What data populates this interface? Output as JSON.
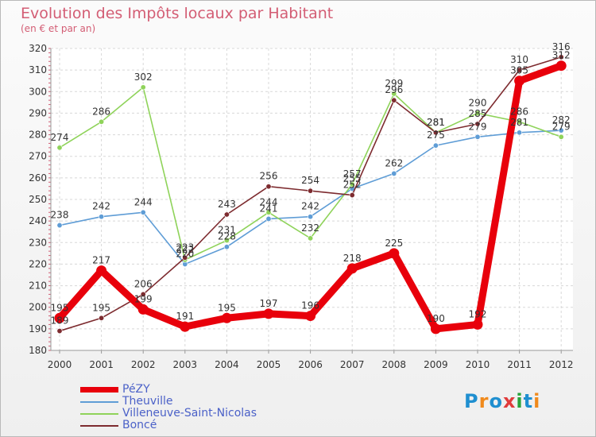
{
  "header": {
    "title": "Evolution des Impôts locaux par Habitant",
    "subtitle": "(en € et par an)"
  },
  "logo": {
    "text": "Proxiti",
    "letters": [
      "P",
      "r",
      "o",
      "x",
      "i",
      "t",
      "i"
    ],
    "colors": [
      "#1f8fd0",
      "#f08a1c",
      "#1f8fd0",
      "#e03b3b",
      "#29a33a",
      "#1f8fd0",
      "#f08a1c"
    ]
  },
  "chart_data": {
    "type": "line",
    "title": "Evolution des Impôts locaux par Habitant",
    "subtitle": "(en € et par an)",
    "xlabel": "",
    "ylabel": "",
    "x": [
      "2000",
      "2001",
      "2002",
      "2003",
      "2004",
      "2005",
      "2006",
      "2007",
      "2008",
      "2009",
      "2010",
      "2011",
      "2012"
    ],
    "ylim": [
      180,
      320
    ],
    "yticks": [
      180,
      190,
      200,
      210,
      220,
      230,
      240,
      250,
      260,
      270,
      280,
      290,
      300,
      310,
      320
    ],
    "grid": true,
    "legend_position": "bottom-left",
    "series": [
      {
        "name": "PéZY",
        "color": "#e8000b",
        "values": [
          195,
          217,
          199,
          191,
          195,
          197,
          196,
          218,
          225,
          190,
          192,
          305,
          312
        ]
      },
      {
        "name": "Theuville",
        "color": "#5f9dd6",
        "values": [
          238,
          242,
          244,
          220,
          228,
          241,
          242,
          255,
          262,
          275,
          279,
          281,
          282
        ]
      },
      {
        "name": "Villeneuve-Saint-Nicolas",
        "color": "#8fd35a",
        "values": [
          274,
          286,
          302,
          222,
          231,
          244,
          232,
          257,
          299,
          281,
          290,
          286,
          279
        ]
      },
      {
        "name": "Boncé",
        "color": "#7d2b2f",
        "values": [
          189,
          195,
          206,
          223,
          243,
          256,
          254,
          252,
          296,
          281,
          285,
          310,
          316
        ]
      }
    ],
    "data_labels": [
      [
        "195",
        "217",
        "199",
        "191",
        "195",
        "197",
        "196",
        "218",
        "225",
        "190",
        "192",
        "305",
        "312"
      ],
      [
        "238",
        "242",
        "244",
        "220",
        "228",
        "241",
        "242",
        "255",
        "262",
        "275",
        "279",
        "281",
        "282"
      ],
      [
        "274",
        "286",
        "302",
        "222",
        "231",
        "244",
        "232",
        "257",
        "299",
        "281",
        "290",
        "286",
        "279"
      ],
      [
        "189",
        "195",
        "206",
        "223",
        "243",
        "256",
        "254",
        "252",
        "296",
        "281",
        "285",
        "310",
        "316"
      ]
    ]
  }
}
